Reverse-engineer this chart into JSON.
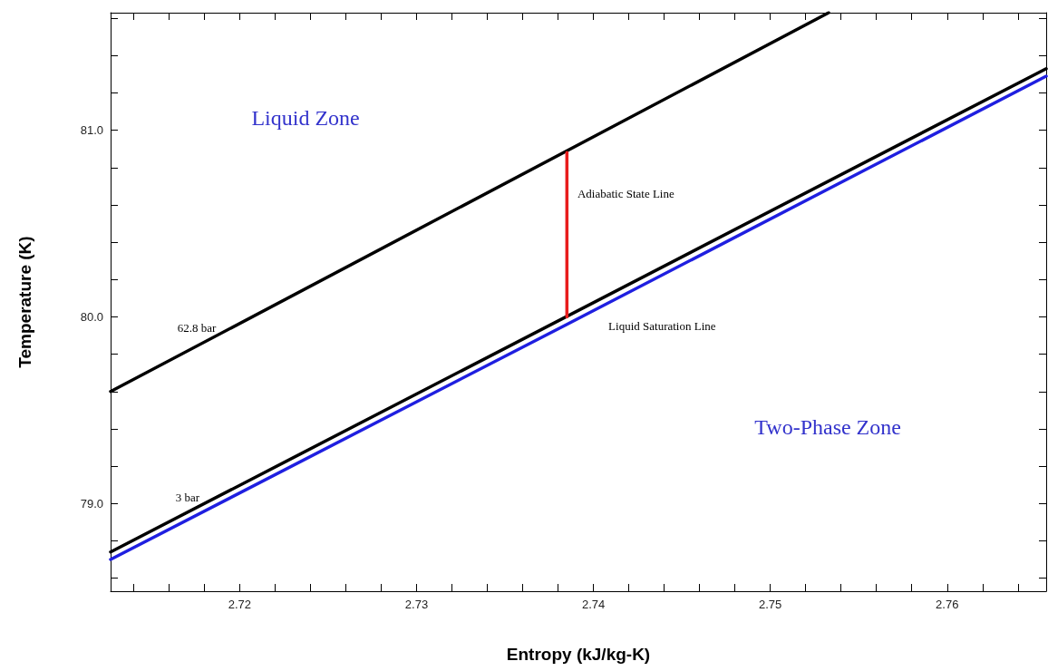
{
  "chart_data": {
    "type": "line",
    "xlabel": "Entropy (kJ/kg-K)",
    "ylabel": "Temperature (K)",
    "xlim": [
      2.7127,
      2.7656
    ],
    "ylim": [
      78.53,
      81.63
    ],
    "xticks": [
      {
        "value": 2.714,
        "label": null
      },
      {
        "value": 2.716,
        "label": null
      },
      {
        "value": 2.718,
        "label": null
      },
      2.72,
      {
        "value": 2.722,
        "label": null
      },
      {
        "value": 2.724,
        "label": null
      },
      {
        "value": 2.726,
        "label": null
      },
      {
        "value": 2.728,
        "label": null
      },
      2.73,
      {
        "value": 2.732,
        "label": null
      },
      {
        "value": 2.734,
        "label": null
      },
      {
        "value": 2.736,
        "label": null
      },
      {
        "value": 2.738,
        "label": null
      },
      2.74,
      {
        "value": 2.742,
        "label": null
      },
      {
        "value": 2.744,
        "label": null
      },
      {
        "value": 2.746,
        "label": null
      },
      {
        "value": 2.748,
        "label": null
      },
      2.75,
      {
        "value": 2.752,
        "label": null
      },
      {
        "value": 2.754,
        "label": null
      },
      {
        "value": 2.756,
        "label": null
      },
      {
        "value": 2.758,
        "label": null
      },
      2.76,
      {
        "value": 2.762,
        "label": null
      },
      {
        "value": 2.764,
        "label": null
      }
    ],
    "yticks": [
      {
        "value": 78.6,
        "label": null
      },
      {
        "value": 78.8,
        "label": null
      },
      {
        "value": 79,
        "label": "79.0"
      },
      {
        "value": 79.2,
        "label": null
      },
      {
        "value": 79.4,
        "label": null
      },
      {
        "value": 79.6,
        "label": null
      },
      {
        "value": 79.8,
        "label": null
      },
      {
        "value": 80,
        "label": "80.0"
      },
      {
        "value": 80.2,
        "label": null
      },
      {
        "value": 80.4,
        "label": null
      },
      {
        "value": 80.6,
        "label": null
      },
      {
        "value": 80.8,
        "label": null
      },
      {
        "value": 81,
        "label": "81.0"
      },
      {
        "value": 81.2,
        "label": null
      },
      {
        "value": 81.4,
        "label": null
      },
      {
        "value": 81.6,
        "label": null
      }
    ],
    "series": [
      {
        "name": "62.8 bar",
        "color": "#000000",
        "x": [
          2.7127,
          2.7533
        ],
        "values": [
          79.6,
          81.63
        ]
      },
      {
        "name": "3 bar",
        "color": "#000000",
        "x": [
          2.7127,
          2.7656
        ],
        "values": [
          78.74,
          81.33
        ]
      },
      {
        "name": "Liquid Saturation Line",
        "color": "#1f1fe0",
        "x": [
          2.7127,
          2.7385,
          2.7656
        ],
        "values": [
          78.7,
          79.96,
          81.29
        ]
      },
      {
        "name": "Adiabatic State Line",
        "color": "#e81c1c",
        "x": [
          2.7385,
          2.7385
        ],
        "values": [
          80.0,
          80.88
        ]
      }
    ],
    "annotations": [
      "Liquid Zone",
      "Two-Phase Zone"
    ],
    "grid": false,
    "legend": false,
    "marker": "none",
    "line_style": "solid"
  }
}
